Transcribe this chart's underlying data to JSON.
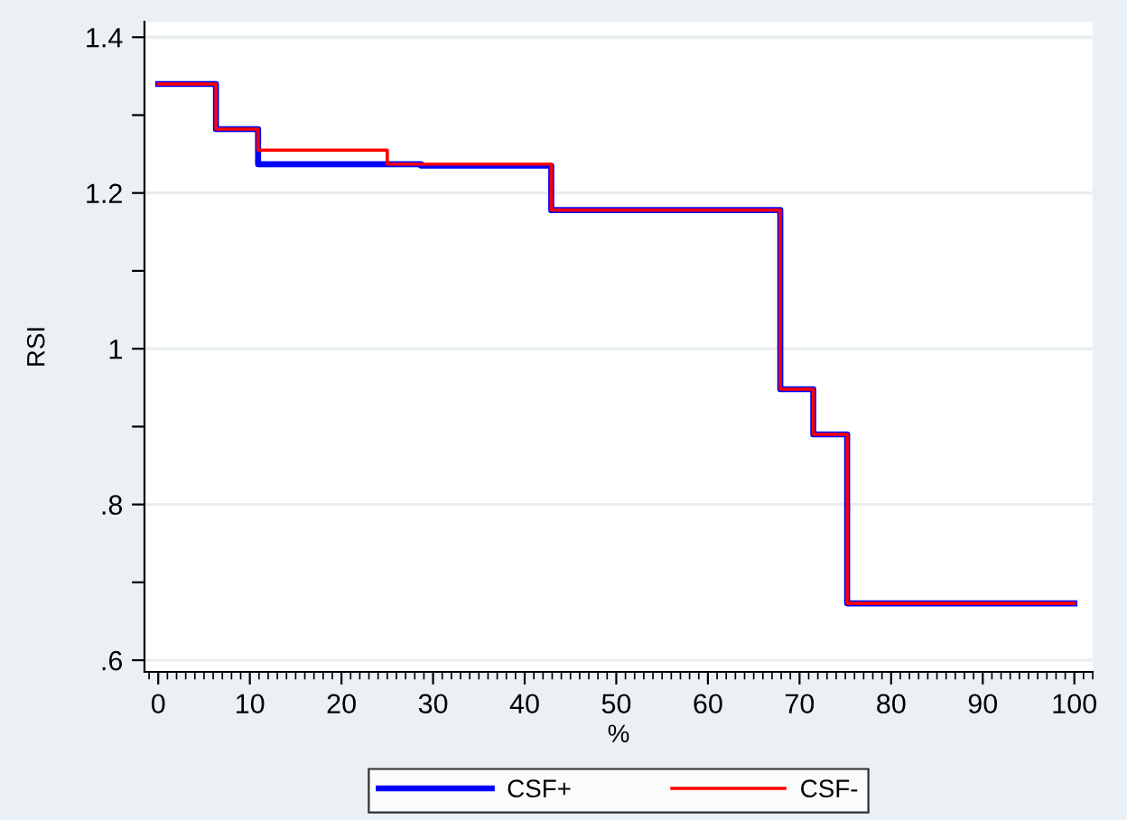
{
  "chart_data": {
    "type": "step",
    "xlabel": "%",
    "ylabel": "RSI",
    "series": [
      {
        "name": "CSF+",
        "color": "#0000ff",
        "x": [
          0,
          6.3,
          10.9,
          28.7,
          42.9,
          67.9,
          71.5,
          75.2,
          100
        ],
        "values": [
          1.34,
          1.282,
          1.237,
          1.235,
          1.178,
          0.948,
          0.89,
          0.673,
          0.673
        ]
      },
      {
        "name": "CSF-",
        "color": "#ff0000",
        "x": [
          0,
          6.3,
          10.9,
          25,
          42.9,
          67.9,
          71.5,
          75.2,
          100
        ],
        "values": [
          1.34,
          1.282,
          1.255,
          1.237,
          1.178,
          0.948,
          0.89,
          0.673,
          0.673
        ]
      }
    ],
    "xlim": [
      -1.5,
      102
    ],
    "xticks": [
      0,
      10,
      20,
      30,
      40,
      50,
      60,
      70,
      80,
      90,
      100
    ],
    "ylim": [
      0.585,
      1.42
    ],
    "yticks": [
      {
        "value": 0.6,
        "label": ".6"
      },
      {
        "value": 0.7,
        "label": null
      },
      {
        "value": 0.8,
        "label": ".8"
      },
      {
        "value": 0.9,
        "label": null
      },
      {
        "value": 1,
        "label": "1"
      },
      {
        "value": 1.1,
        "label": null
      },
      {
        "value": 1.2,
        "label": "1.2"
      },
      {
        "value": 1.3,
        "label": null
      },
      {
        "value": 1.4,
        "label": "1.4"
      }
    ],
    "grid": "y",
    "legend": "bottom",
    "line_style": "solid",
    "marker": "none"
  }
}
